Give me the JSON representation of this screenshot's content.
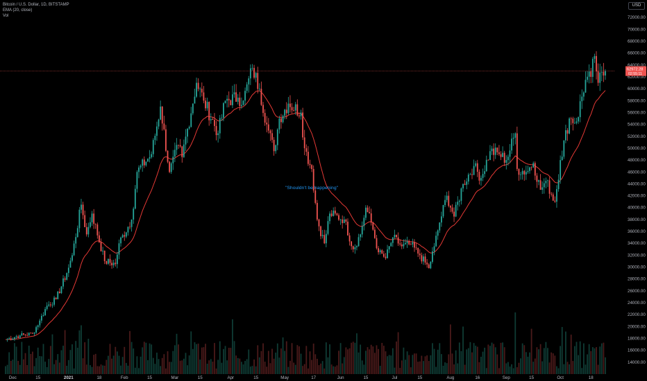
{
  "header": {
    "symbol_line": "Bitcoin / U.S. Dollar, 1D, BITSTAMP",
    "ema_label": "EMA (20, close)",
    "volume_label": "Vol",
    "currency": "USD"
  },
  "annotation": "\"Shouldn't be happening\"",
  "price_label": {
    "value": "62972.28",
    "countdown": "02:55:11"
  },
  "colors": {
    "up": "#26a69a",
    "down": "#ef5350",
    "ema": "#e53935",
    "annotation": "#2196f3",
    "background": "#000000",
    "axis_text": "#b2b5be"
  },
  "chart_data": {
    "type": "candlestick",
    "title": "Bitcoin / U.S. Dollar, 1D, BITSTAMP",
    "interval": "1D",
    "y_unit": "USD",
    "ylim": [
      12000,
      74000
    ],
    "yticks": [
      14000,
      16000,
      18000,
      20000,
      22000,
      24000,
      26000,
      28000,
      30000,
      32000,
      34000,
      36000,
      38000,
      40000,
      42000,
      44000,
      46000,
      48000,
      50000,
      52000,
      54000,
      56000,
      58000,
      60000,
      62000,
      64000,
      66000,
      68000,
      70000,
      72000
    ],
    "xticks": [
      {
        "label": "Dec",
        "date": "2020-12-01"
      },
      {
        "label": "15",
        "date": "2020-12-15"
      },
      {
        "label": "2021",
        "date": "2021-01-01"
      },
      {
        "label": "18",
        "date": "2021-01-18"
      },
      {
        "label": "Feb",
        "date": "2021-02-01"
      },
      {
        "label": "15",
        "date": "2021-02-15"
      },
      {
        "label": "Mar",
        "date": "2021-03-01"
      },
      {
        "label": "15",
        "date": "2021-03-15"
      },
      {
        "label": "Apr",
        "date": "2021-04-01"
      },
      {
        "label": "15",
        "date": "2021-04-15"
      },
      {
        "label": "May",
        "date": "2021-05-01"
      },
      {
        "label": "17",
        "date": "2021-05-17"
      },
      {
        "label": "Jun",
        "date": "2021-06-01"
      },
      {
        "label": "15",
        "date": "2021-06-15"
      },
      {
        "label": "Jul",
        "date": "2021-07-01"
      },
      {
        "label": "15",
        "date": "2021-07-15"
      },
      {
        "label": "Aug",
        "date": "2021-08-01"
      },
      {
        "label": "16",
        "date": "2021-08-16"
      },
      {
        "label": "Sep",
        "date": "2021-09-01"
      },
      {
        "label": "15",
        "date": "2021-09-15"
      },
      {
        "label": "Oct",
        "date": "2021-10-01"
      },
      {
        "label": "18",
        "date": "2021-10-18"
      }
    ],
    "x_range": [
      "2020-11-27",
      "2021-10-26"
    ],
    "current_price": 62972.28,
    "legend": [
      "EMA (20, close)",
      "Vol"
    ],
    "grid": false,
    "keypoints": [
      {
        "date": "2020-11-27",
        "close": 17800
      },
      {
        "date": "2020-12-05",
        "close": 18500
      },
      {
        "date": "2020-12-12",
        "close": 18800
      },
      {
        "date": "2020-12-16",
        "close": 21000
      },
      {
        "date": "2020-12-20",
        "close": 23500
      },
      {
        "date": "2020-12-25",
        "close": 24600
      },
      {
        "date": "2020-12-31",
        "close": 29000
      },
      {
        "date": "2021-01-03",
        "close": 32000
      },
      {
        "date": "2021-01-08",
        "close": 40500
      },
      {
        "date": "2021-01-11",
        "close": 35500
      },
      {
        "date": "2021-01-14",
        "close": 39000
      },
      {
        "date": "2021-01-21",
        "close": 31000
      },
      {
        "date": "2021-01-27",
        "close": 30500
      },
      {
        "date": "2021-01-29",
        "close": 34000
      },
      {
        "date": "2021-02-05",
        "close": 38000
      },
      {
        "date": "2021-02-08",
        "close": 46000
      },
      {
        "date": "2021-02-16",
        "close": 49000
      },
      {
        "date": "2021-02-21",
        "close": 57000
      },
      {
        "date": "2021-02-26",
        "close": 46000
      },
      {
        "date": "2021-03-03",
        "close": 50500
      },
      {
        "date": "2021-03-05",
        "close": 48500
      },
      {
        "date": "2021-03-13",
        "close": 61000
      },
      {
        "date": "2021-03-17",
        "close": 58000
      },
      {
        "date": "2021-03-25",
        "close": 52500
      },
      {
        "date": "2021-03-29",
        "close": 58000
      },
      {
        "date": "2021-04-05",
        "close": 58500
      },
      {
        "date": "2021-04-08",
        "close": 58000
      },
      {
        "date": "2021-04-13",
        "close": 63500
      },
      {
        "date": "2021-04-17",
        "close": 60000
      },
      {
        "date": "2021-04-21",
        "close": 54000
      },
      {
        "date": "2021-04-25",
        "close": 49500
      },
      {
        "date": "2021-04-28",
        "close": 55000
      },
      {
        "date": "2021-05-03",
        "close": 57500
      },
      {
        "date": "2021-05-10",
        "close": 56000
      },
      {
        "date": "2021-05-12",
        "close": 50000
      },
      {
        "date": "2021-05-16",
        "close": 46500
      },
      {
        "date": "2021-05-19",
        "close": 38000
      },
      {
        "date": "2021-05-23",
        "close": 34000
      },
      {
        "date": "2021-05-26",
        "close": 39000
      },
      {
        "date": "2021-06-03",
        "close": 38000
      },
      {
        "date": "2021-06-08",
        "close": 33000
      },
      {
        "date": "2021-06-12",
        "close": 35500
      },
      {
        "date": "2021-06-15",
        "close": 40000
      },
      {
        "date": "2021-06-18",
        "close": 37500
      },
      {
        "date": "2021-06-22",
        "close": 32500
      },
      {
        "date": "2021-06-26",
        "close": 31500
      },
      {
        "date": "2021-06-30",
        "close": 35000
      },
      {
        "date": "2021-07-05",
        "close": 33500
      },
      {
        "date": "2021-07-10",
        "close": 33800
      },
      {
        "date": "2021-07-15",
        "close": 32000
      },
      {
        "date": "2021-07-20",
        "close": 29800
      },
      {
        "date": "2021-07-23",
        "close": 33500
      },
      {
        "date": "2021-07-26",
        "close": 37500
      },
      {
        "date": "2021-07-30",
        "close": 42000
      },
      {
        "date": "2021-08-03",
        "close": 38500
      },
      {
        "date": "2021-08-08",
        "close": 44000
      },
      {
        "date": "2021-08-14",
        "close": 47000
      },
      {
        "date": "2021-08-18",
        "close": 45000
      },
      {
        "date": "2021-08-23",
        "close": 49500
      },
      {
        "date": "2021-08-28",
        "close": 49000
      },
      {
        "date": "2021-09-01",
        "close": 48000
      },
      {
        "date": "2021-09-06",
        "close": 52500
      },
      {
        "date": "2021-09-07",
        "close": 46500
      },
      {
        "date": "2021-09-12",
        "close": 46000
      },
      {
        "date": "2021-09-16",
        "close": 47500
      },
      {
        "date": "2021-09-20",
        "close": 43000
      },
      {
        "date": "2021-09-23",
        "close": 44500
      },
      {
        "date": "2021-09-28",
        "close": 41000
      },
      {
        "date": "2021-10-01",
        "close": 48000
      },
      {
        "date": "2021-10-06",
        "close": 55000
      },
      {
        "date": "2021-10-10",
        "close": 54500
      },
      {
        "date": "2021-10-15",
        "close": 61500
      },
      {
        "date": "2021-10-18",
        "close": 62000
      },
      {
        "date": "2021-10-20",
        "close": 65500
      },
      {
        "date": "2021-10-22",
        "close": 61000
      },
      {
        "date": "2021-10-26",
        "close": 62972
      }
    ]
  }
}
